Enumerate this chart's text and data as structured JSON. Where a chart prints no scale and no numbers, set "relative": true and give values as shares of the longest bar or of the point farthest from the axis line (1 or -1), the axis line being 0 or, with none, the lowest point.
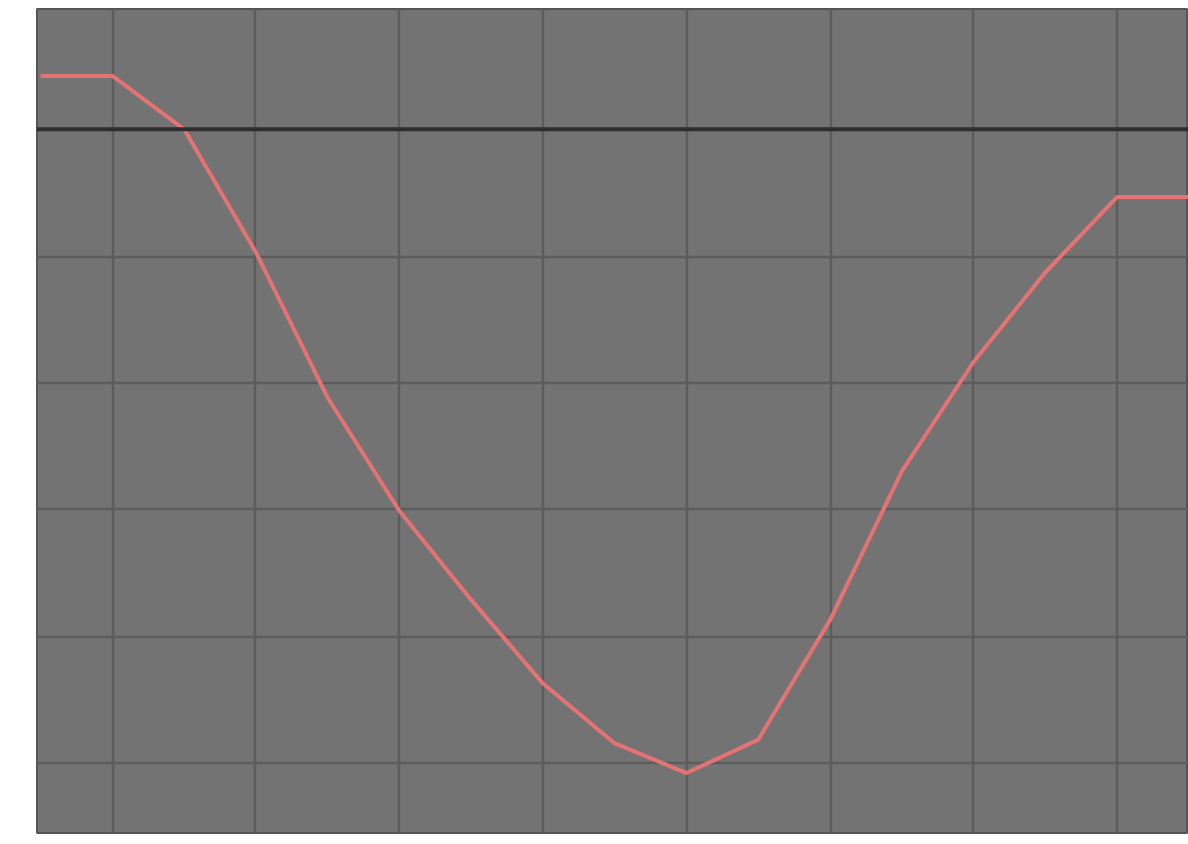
{
  "chart_data": {
    "type": "line",
    "relative": true,
    "grid": true,
    "line_style": "solid",
    "marker": "none",
    "categories": [
      null,
      null,
      null,
      null,
      null,
      null,
      null,
      null,
      null,
      null,
      null,
      null,
      null,
      null,
      null,
      null,
      null
    ],
    "series": [
      {
        "color": "#e57373",
        "values": [
          0.083,
          0.083,
          0,
          -0.191,
          -0.417,
          -0.593,
          -0.731,
          -0.861,
          -0.954,
          -1,
          -0.948,
          -0.762,
          -0.531,
          -0.361,
          -0.222,
          -0.105,
          -0.105
        ]
      }
    ]
  }
}
